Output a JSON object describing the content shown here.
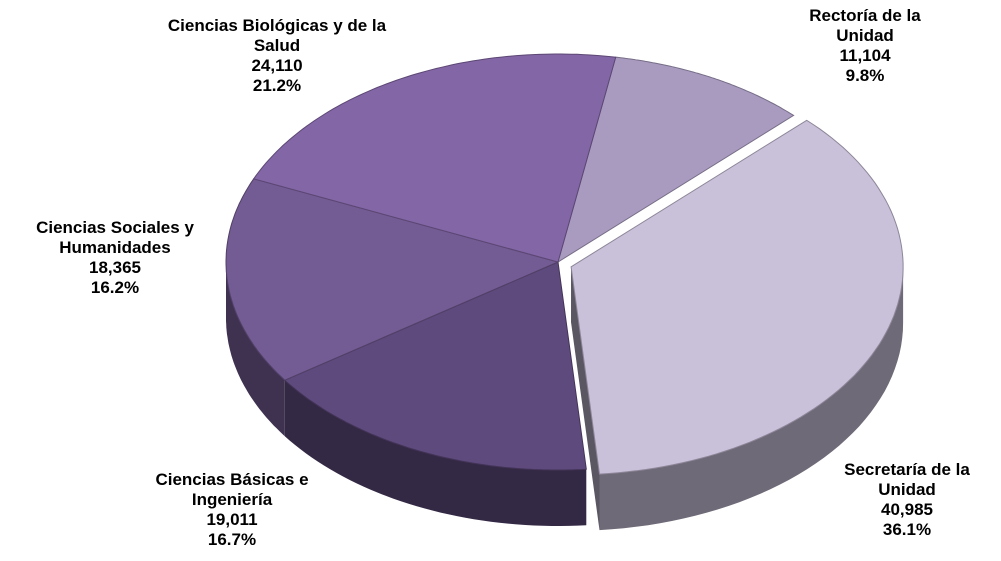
{
  "chart_data": {
    "type": "pie3d",
    "categories": [
      "Rectoría de la Unidad",
      "Secretaría de la Unidad",
      "Ciencias Básicas e Ingeniería",
      "Ciencias Sociales y Humanidades",
      "Ciencias Biológicas y de la Salud"
    ],
    "values": [
      11104,
      40985,
      19011,
      18365,
      24110
    ],
    "value_labels": [
      "11,104",
      "40,985",
      "19,011",
      "18,365",
      "24,110"
    ],
    "percentages": [
      9.8,
      36.1,
      16.7,
      16.2,
      21.2
    ],
    "percentage_labels": [
      "9.8%",
      "36.1%",
      "16.7%",
      "16.2%",
      "21.2%"
    ],
    "colors": [
      "#a99bc0",
      "#c9c0d9",
      "#5f4a7d",
      "#735b93",
      "#8366a6"
    ]
  }
}
